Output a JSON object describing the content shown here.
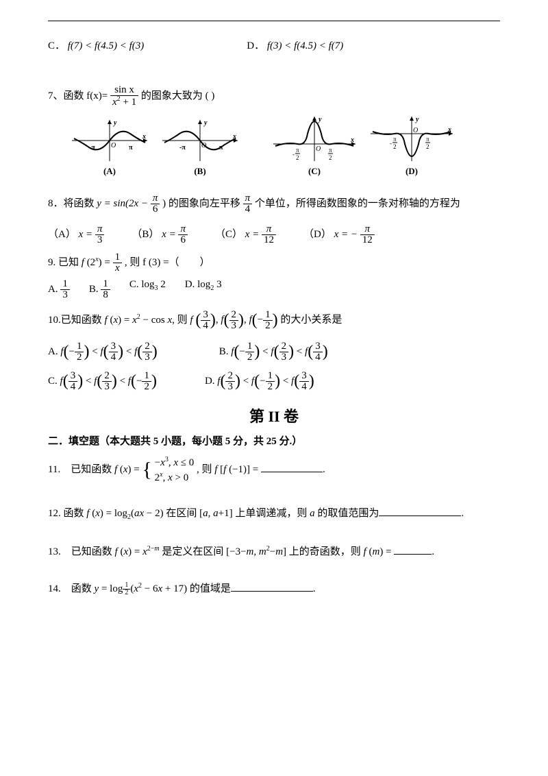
{
  "colors": {
    "text": "#000000",
    "bg": "#ffffff",
    "line": "#000000"
  },
  "font": {
    "body_size_pt": 15,
    "title_size_pt": 22,
    "family": "Times New Roman / SimSun"
  },
  "q6_opts": {
    "C": {
      "label": "C．",
      "math": "f(7) < f(4.5) < f(3)"
    },
    "D": {
      "label": "D．",
      "math": "f(3) < f(4.5) < f(7)"
    }
  },
  "q7": {
    "prefix": "7、函数 f(x)=",
    "frac": {
      "num": "sin x",
      "den": "x² + 1"
    },
    "suffix": "的图象大致为 (        )",
    "graphs": [
      {
        "label": "(A)",
        "type": "odd_sine",
        "ticks": [
          "-π",
          "0",
          "π"
        ],
        "left_low": true
      },
      {
        "label": "(B)",
        "type": "odd_sine_flip",
        "ticks": [
          "-π",
          "0",
          "π"
        ],
        "left_high": true
      },
      {
        "label": "(C)",
        "type": "even_peak",
        "ticks": [
          "-π/2",
          "0",
          "π/2"
        ]
      },
      {
        "label": "(D)",
        "type": "even_dip",
        "ticks": [
          "-π/2",
          "0",
          "π/2"
        ]
      }
    ]
  },
  "q8": {
    "text_a": "8．将函数 ",
    "fn": "y = sin(2x − ",
    "frac1": {
      "num": "π",
      "den": "6"
    },
    "text_b": ") 的图象向左平移 ",
    "frac2": {
      "num": "π",
      "den": "4"
    },
    "text_c": " 个单位，所得函数图象的一条对称轴的方程为",
    "opts": {
      "A": {
        "label": "（A）",
        "eq": "x =",
        "frac": {
          "num": "π",
          "den": "3"
        }
      },
      "B": {
        "label": "（B）",
        "eq": "x =",
        "frac": {
          "num": "π",
          "den": "6"
        }
      },
      "C": {
        "label": "（C）",
        "eq": "x =",
        "frac": {
          "num": "π",
          "den": "12"
        }
      },
      "D": {
        "label": "（D）",
        "eq": "x = −",
        "frac": {
          "num": "π",
          "den": "12"
        }
      }
    }
  },
  "q9": {
    "text": "9. 已知 f (2ˣ) = ",
    "frac": {
      "num": "1",
      "den": "x"
    },
    "suffix": ", 则 f (3) =（　　）",
    "opts": {
      "A": {
        "label": "A.",
        "frac": {
          "num": "1",
          "den": "3"
        }
      },
      "B": {
        "label": "B.",
        "frac": {
          "num": "1",
          "den": "8"
        }
      },
      "C": {
        "label": "C.",
        "math": "log₃ 2"
      },
      "D": {
        "label": "D.",
        "math": "log₂ 3"
      }
    }
  },
  "q10": {
    "text_a": "10.已知函数 f (x) = x² − cos x, 则 f",
    "args": [
      {
        "num": "3",
        "den": "4"
      },
      {
        "num": "2",
        "den": "3"
      },
      {
        "neg": true,
        "num": "1",
        "den": "2"
      }
    ],
    "text_b": "的大小关系是",
    "opts": {
      "A": {
        "label": "A.",
        "order": [
          {
            "neg": true,
            "num": "1",
            "den": "2"
          },
          {
            "num": "3",
            "den": "4"
          },
          {
            "num": "2",
            "den": "3"
          }
        ]
      },
      "B": {
        "label": "B.",
        "order": [
          {
            "neg": true,
            "num": "1",
            "den": "2"
          },
          {
            "num": "2",
            "den": "3"
          },
          {
            "num": "3",
            "den": "4"
          }
        ]
      },
      "C": {
        "label": "C.",
        "order": [
          {
            "num": "3",
            "den": "4"
          },
          {
            "num": "2",
            "den": "3"
          },
          {
            "neg": true,
            "num": "1",
            "den": "2"
          }
        ]
      },
      "D": {
        "label": "D.",
        "order": [
          {
            "num": "2",
            "den": "3"
          },
          {
            "neg": true,
            "num": "1",
            "den": "2"
          },
          {
            "num": "3",
            "den": "4"
          }
        ]
      }
    }
  },
  "section2": {
    "title": "第 II 卷",
    "heading": "二．填空题（本大题共 5 小题，每小题 5 分，共 25 分.）"
  },
  "q11": {
    "text_a": "11.　已知函数 f (x) = ",
    "case1": "−x³, x ≤ 0",
    "case2": "2ˣ, x > 0",
    "text_b": ", 则 f [f (−1)] = "
  },
  "q12": {
    "text_a": "12. 函数 f (x) = log₂(ax − 2) 在区间 [a, a+1] 上单调递减，则 a 的取值范围为"
  },
  "q13": {
    "text_a": "13.　已知函数 f (x) = x",
    "exp": "2−m",
    "text_b": " 是定义在区间 [−3−m, m²−m] 上的奇函数，则 f (m) = "
  },
  "q14": {
    "text_a": "14.　函数 y = log",
    "base": {
      "num": "1",
      "den": "2"
    },
    "arg": "(x² − 6x + 17) 的值域是"
  }
}
